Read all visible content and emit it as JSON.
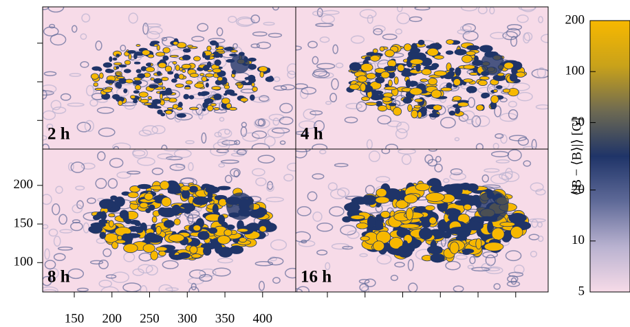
{
  "chart_data": {
    "type": "heatmap",
    "panels": [
      "2 h",
      "4 h",
      "8 h",
      "16 h"
    ],
    "xlim": [
      108,
      444
    ],
    "xticks": [
      150,
      200,
      250,
      300,
      350,
      400
    ],
    "ylim": [
      62,
      247
    ],
    "yticks": [
      100,
      150,
      200
    ],
    "colorbar": {
      "label": "⟨|B − ⟨B⟩|⟩  [G]",
      "lim": [
        5,
        200
      ],
      "ticks": [
        5,
        10,
        20,
        50,
        100,
        200
      ],
      "log": true,
      "colors": [
        "#f7dbe8",
        "#b9b2d0",
        "#5f6a98",
        "#1f3468",
        "#6e6a52",
        "#c9a21a",
        "#f7b800"
      ]
    }
  }
}
